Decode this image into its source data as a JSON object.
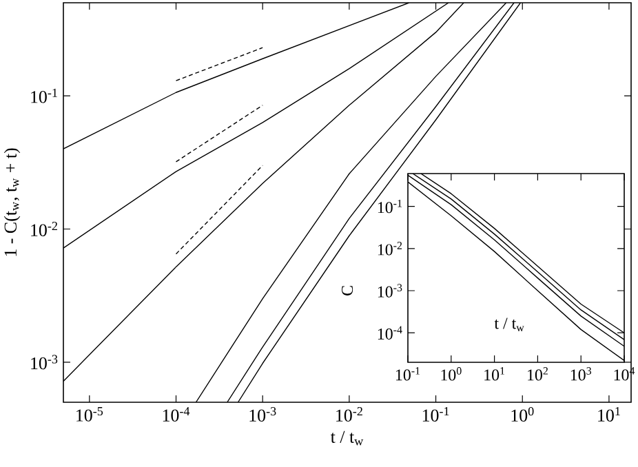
{
  "chart_data": [
    {
      "type": "line",
      "xlabel": "t / t$_{w}$",
      "ylabel": "1 - C(t$_{w}$, t$_{w}$ + t)",
      "log": "xy",
      "xlim": [
        5e-06,
        18
      ],
      "ylim": [
        0.0005,
        0.5
      ],
      "xticks": [
        {
          "value": 1e-05,
          "label": "10$^{-5}$"
        },
        {
          "value": 0.0001,
          "label": "10$^{-4}$"
        },
        {
          "value": 0.001,
          "label": "10$^{-3}$"
        },
        {
          "value": 0.01,
          "label": "10$^{-2}$"
        },
        {
          "value": 0.1,
          "label": "10$^{-1}$"
        },
        {
          "value": 1,
          "label": "10$^{0}$"
        },
        {
          "value": 10,
          "label": "10$^{1}$"
        }
      ],
      "yticks": [
        {
          "value": 0.001,
          "label": "10$^{-3}$"
        },
        {
          "value": 0.01,
          "label": "10$^{-2}$"
        },
        {
          "value": 0.1,
          "label": "10$^{-1}$"
        }
      ],
      "series": [
        {
          "color": "#000000",
          "line_style": "solid",
          "x": [
            5e-06,
            0.0001,
            0.001,
            0.049
          ],
          "values": [
            0.04,
            0.106,
            0.19,
            0.5
          ]
        },
        {
          "color": "#000000",
          "line_style": "solid",
          "x": [
            5e-06,
            0.0001,
            0.001,
            0.01,
            0.14
          ],
          "values": [
            0.0072,
            0.027,
            0.063,
            0.16,
            0.5
          ]
        },
        {
          "color": "#000000",
          "line_style": "solid",
          "x": [
            5e-06,
            0.0001,
            0.001,
            0.01,
            0.1,
            0.21
          ],
          "values": [
            0.00072,
            0.0052,
            0.022,
            0.085,
            0.3,
            0.5
          ]
        },
        {
          "color": "#000000",
          "line_style": "solid",
          "x": [
            0.00017,
            0.001,
            0.01,
            0.1,
            0.65
          ],
          "values": [
            0.0005,
            0.003,
            0.026,
            0.14,
            0.5
          ]
        },
        {
          "color": "#000000",
          "line_style": "solid",
          "x": [
            0.00039,
            0.001,
            0.01,
            0.1,
            0.8
          ],
          "values": [
            0.0005,
            0.0013,
            0.012,
            0.083,
            0.5
          ]
        },
        {
          "color": "#000000",
          "line_style": "solid",
          "x": [
            0.00052,
            0.001,
            0.01,
            0.1,
            0.95
          ],
          "values": [
            0.0005,
            0.00098,
            0.0089,
            0.066,
            0.5
          ]
        },
        {
          "color": "#000000",
          "line_style": "dashed",
          "x": [
            0.0001,
            0.001
          ],
          "values": [
            0.13,
            0.23
          ]
        },
        {
          "color": "#000000",
          "line_style": "dashed",
          "x": [
            0.0001,
            0.001
          ],
          "values": [
            0.032,
            0.085
          ]
        },
        {
          "color": "#000000",
          "line_style": "dashed",
          "x": [
            0.0001,
            0.001
          ],
          "values": [
            0.0065,
            0.03
          ]
        }
      ]
    },
    {
      "type": "line",
      "xlabel": "t / t$_{w}$",
      "ylabel": "C",
      "log": "xy",
      "xlim": [
        0.1,
        10000
      ],
      "ylim": [
        2e-05,
        0.6
      ],
      "xticks": [
        {
          "value": 0.1,
          "label": "10$^{-1}$"
        },
        {
          "value": 1,
          "label": "10$^{0}$"
        },
        {
          "value": 10,
          "label": "10$^{1}$"
        },
        {
          "value": 100,
          "label": "10$^{2}$"
        },
        {
          "value": 1000,
          "label": "10$^{3}$"
        },
        {
          "value": 10000,
          "label": "10$^{4}$"
        }
      ],
      "yticks": [
        {
          "value": 0.0001,
          "label": "10$^{-4}$"
        },
        {
          "value": 0.001,
          "label": "10$^{-3}$"
        },
        {
          "value": 0.01,
          "label": "10$^{-2}$"
        },
        {
          "value": 0.1,
          "label": "10$^{-1}$"
        }
      ],
      "series": [
        {
          "color": "#000000",
          "line_style": "solid",
          "x": [
            0.1,
            1,
            10,
            100,
            1000,
            10000
          ],
          "values": [
            0.38,
            0.06,
            0.0085,
            0.001,
            0.00012,
            2.2e-05
          ]
        },
        {
          "color": "#000000",
          "line_style": "solid",
          "x": [
            0.1,
            1,
            10,
            100,
            1000,
            10000
          ],
          "values": [
            0.55,
            0.11,
            0.016,
            0.002,
            0.00025,
            4.8e-05
          ]
        },
        {
          "color": "#000000",
          "line_style": "solid",
          "x": [
            0.13,
            1,
            10,
            100,
            1000,
            10000
          ],
          "values": [
            0.6,
            0.15,
            0.022,
            0.0028,
            0.00035,
            6.9e-05
          ]
        },
        {
          "color": "#000000",
          "line_style": "solid",
          "x": [
            0.2,
            1,
            10,
            100,
            1000,
            10000
          ],
          "values": [
            0.6,
            0.2,
            0.03,
            0.0038,
            0.00048,
            0.0001
          ]
        }
      ]
    }
  ]
}
